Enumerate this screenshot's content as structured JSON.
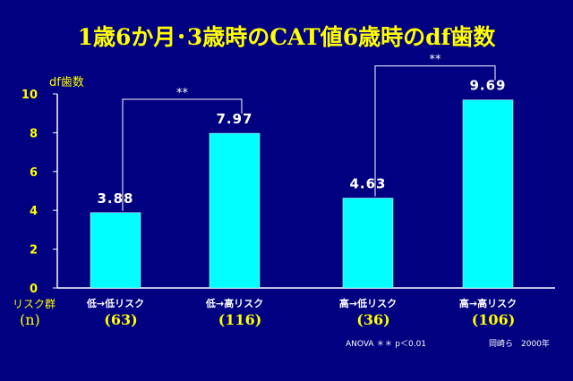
{
  "title": "1歳6か月･3歳時のCAT値6歳時のdf歯数",
  "footnote": {
    "stats": "ANOVA ＊＊ p＜0.01",
    "source": "岡崎ら　2000年"
  },
  "colors": {
    "background": "#000080",
    "bar": "#00ffff",
    "title": "#ffff00",
    "axis": "#ffffff",
    "bracket": "#ffffff"
  },
  "chart_data": {
    "type": "bar",
    "title": "1歳6か月･3歳時のCAT値6歳時のdf歯数",
    "ylabel": "df歯数",
    "ylim": [
      0,
      10
    ],
    "yticks": [
      0,
      2,
      4,
      6,
      8,
      10
    ],
    "row_labels": {
      "categories": "リスク群",
      "n": "(n)"
    },
    "categories": [
      "低→低リスク",
      "低→高リスク",
      "高→低リスク",
      "高→高リスク"
    ],
    "n": [
      "(63)",
      "(116)",
      "(36)",
      "(106)"
    ],
    "values": [
      3.88,
      7.97,
      4.63,
      9.69
    ],
    "data_labels": [
      "3.88",
      "7.97",
      "4.63",
      "9.69"
    ],
    "significance": [
      {
        "between": [
          0,
          1
        ],
        "label": "**"
      },
      {
        "between": [
          2,
          3
        ],
        "label": "**"
      }
    ],
    "grid": false
  }
}
